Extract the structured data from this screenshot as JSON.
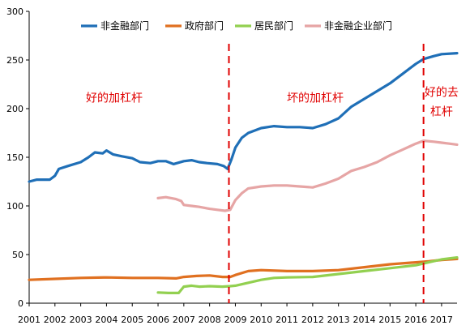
{
  "chart_data": {
    "type": "line",
    "title": "",
    "xlabel": "",
    "ylabel": "",
    "xlim": [
      2001,
      2017.6
    ],
    "ylim": [
      0,
      300
    ],
    "yticks": [
      0,
      50,
      100,
      150,
      200,
      250,
      300
    ],
    "xtick_labels": [
      "2001",
      "2002",
      "2003",
      "2004",
      "2005",
      "2006",
      "2007",
      "2008",
      "2009",
      "2010",
      "2011",
      "2012",
      "2013",
      "2014",
      "2015",
      "2016",
      "2017"
    ],
    "grid": false,
    "legend_position": "top",
    "series": [
      {
        "name": "非金融部门",
        "color": "#1f6fb7",
        "points": [
          [
            2001.0,
            125
          ],
          [
            2001.3,
            127
          ],
          [
            2001.8,
            127
          ],
          [
            2002.0,
            131
          ],
          [
            2002.15,
            138
          ],
          [
            2002.5,
            141
          ],
          [
            2003.0,
            145
          ],
          [
            2003.3,
            150
          ],
          [
            2003.55,
            155
          ],
          [
            2003.85,
            154
          ],
          [
            2004.0,
            157
          ],
          [
            2004.25,
            153
          ],
          [
            2004.6,
            151
          ],
          [
            2005.0,
            149
          ],
          [
            2005.3,
            145
          ],
          [
            2005.7,
            144
          ],
          [
            2006.0,
            146
          ],
          [
            2006.3,
            146
          ],
          [
            2006.6,
            143
          ],
          [
            2007.0,
            146
          ],
          [
            2007.3,
            147
          ],
          [
            2007.6,
            145
          ],
          [
            2007.9,
            144
          ],
          [
            2008.3,
            143
          ],
          [
            2008.55,
            141
          ],
          [
            2008.7,
            138
          ],
          [
            2008.85,
            148
          ],
          [
            2009.0,
            160
          ],
          [
            2009.25,
            170
          ],
          [
            2009.5,
            175
          ],
          [
            2010.0,
            180
          ],
          [
            2010.5,
            182
          ],
          [
            2011.0,
            181
          ],
          [
            2011.5,
            181
          ],
          [
            2012.0,
            180
          ],
          [
            2012.5,
            184
          ],
          [
            2013.0,
            190
          ],
          [
            2013.5,
            202
          ],
          [
            2014.0,
            210
          ],
          [
            2014.5,
            218
          ],
          [
            2015.0,
            226
          ],
          [
            2015.5,
            236
          ],
          [
            2016.0,
            246
          ],
          [
            2016.3,
            251
          ],
          [
            2016.7,
            254
          ],
          [
            2017.0,
            256
          ],
          [
            2017.6,
            257
          ]
        ]
      },
      {
        "name": "政府部门",
        "color": "#e07020",
        "points": [
          [
            2001.0,
            24
          ],
          [
            2002.0,
            25
          ],
          [
            2003.0,
            26
          ],
          [
            2004.0,
            26.5
          ],
          [
            2005.0,
            26
          ],
          [
            2006.0,
            26
          ],
          [
            2006.7,
            25.5
          ],
          [
            2007.0,
            27
          ],
          [
            2007.5,
            28
          ],
          [
            2008.0,
            28.5
          ],
          [
            2008.5,
            27
          ],
          [
            2008.8,
            27
          ],
          [
            2009.0,
            29
          ],
          [
            2009.5,
            33
          ],
          [
            2010.0,
            34
          ],
          [
            2011.0,
            33
          ],
          [
            2012.0,
            33
          ],
          [
            2013.0,
            34
          ],
          [
            2014.0,
            37
          ],
          [
            2015.0,
            40
          ],
          [
            2016.0,
            42
          ],
          [
            2016.5,
            43
          ],
          [
            2017.0,
            44.5
          ],
          [
            2017.6,
            45.5
          ]
        ]
      },
      {
        "name": "居民部门",
        "color": "#92d050",
        "points": [
          [
            2006.0,
            11
          ],
          [
            2006.4,
            10.5
          ],
          [
            2006.8,
            10.5
          ],
          [
            2007.0,
            17
          ],
          [
            2007.3,
            18
          ],
          [
            2007.6,
            17
          ],
          [
            2008.0,
            17.5
          ],
          [
            2008.5,
            17
          ],
          [
            2008.8,
            17.5
          ],
          [
            2009.0,
            18
          ],
          [
            2009.5,
            21
          ],
          [
            2010.0,
            24
          ],
          [
            2010.5,
            26
          ],
          [
            2011.0,
            26.5
          ],
          [
            2012.0,
            27
          ],
          [
            2013.0,
            30
          ],
          [
            2014.0,
            33
          ],
          [
            2015.0,
            36
          ],
          [
            2016.0,
            39
          ],
          [
            2016.5,
            42
          ],
          [
            2017.0,
            45
          ],
          [
            2017.6,
            47
          ]
        ]
      },
      {
        "name": "非金融企业部门",
        "color": "#e6a5a5",
        "points": [
          [
            2006.0,
            108
          ],
          [
            2006.3,
            109
          ],
          [
            2006.7,
            107
          ],
          [
            2006.9,
            105
          ],
          [
            2007.0,
            101
          ],
          [
            2007.3,
            100
          ],
          [
            2007.6,
            99
          ],
          [
            2008.0,
            97
          ],
          [
            2008.3,
            96
          ],
          [
            2008.6,
            95
          ],
          [
            2008.8,
            96
          ],
          [
            2009.0,
            106
          ],
          [
            2009.25,
            113
          ],
          [
            2009.5,
            118
          ],
          [
            2010.0,
            120
          ],
          [
            2010.5,
            121
          ],
          [
            2011.0,
            121
          ],
          [
            2011.5,
            120
          ],
          [
            2012.0,
            119
          ],
          [
            2012.5,
            123
          ],
          [
            2013.0,
            128
          ],
          [
            2013.5,
            136
          ],
          [
            2014.0,
            140
          ],
          [
            2014.5,
            145
          ],
          [
            2015.0,
            152
          ],
          [
            2015.5,
            158
          ],
          [
            2016.0,
            164
          ],
          [
            2016.3,
            167
          ],
          [
            2016.7,
            166
          ],
          [
            2017.0,
            165
          ],
          [
            2017.3,
            164
          ],
          [
            2017.6,
            163
          ]
        ]
      }
    ],
    "annotations": [
      {
        "text": "好的加杠杆",
        "x": 2004.3,
        "y": 207
      },
      {
        "text": "坏的加杠杆",
        "x": 2012.1,
        "y": 207
      },
      {
        "text": "好的去",
        "x": 2017.0,
        "y": 213
      },
      {
        "text": "杠杆",
        "x": 2017.0,
        "y": 193
      }
    ],
    "vertical_lines": [
      2008.75,
      2016.3
    ],
    "vertical_line_color": "#e00000"
  }
}
